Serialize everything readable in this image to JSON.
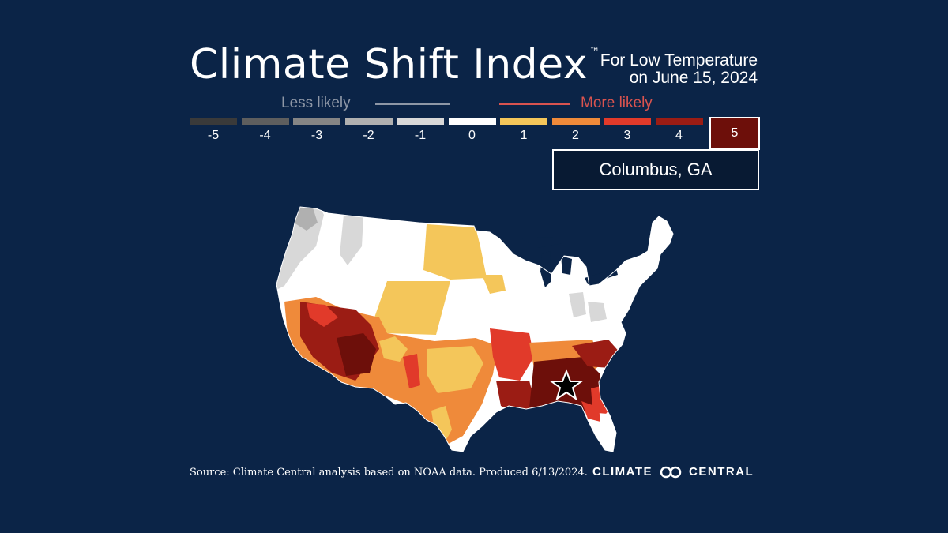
{
  "title": "Climate Shift Index",
  "trademark": "™",
  "subtitle_line1": "For Low Temperature",
  "subtitle_line2": "on June 15, 2024",
  "legend": {
    "less_label": "Less likely",
    "more_label": "More likely",
    "scale": [
      {
        "value": "-5",
        "color": "#3a3a3a"
      },
      {
        "value": "-4",
        "color": "#5e5e5e"
      },
      {
        "value": "-3",
        "color": "#858585"
      },
      {
        "value": "-2",
        "color": "#b0b0b0"
      },
      {
        "value": "-1",
        "color": "#d8d8d8"
      },
      {
        "value": "0",
        "color": "#ffffff"
      },
      {
        "value": "1",
        "color": "#f4c65a"
      },
      {
        "value": "2",
        "color": "#ef8a3a"
      },
      {
        "value": "3",
        "color": "#e13a2a"
      },
      {
        "value": "4",
        "color": "#9b1c14"
      }
    ],
    "highlight": {
      "value": "5",
      "color": "#6d0f0a"
    }
  },
  "location": "Columbus, GA",
  "map": {
    "region": "Contiguous United States",
    "marker_icon": "star-icon"
  },
  "source": "Source: Climate Central analysis based on NOAA data. Produced 6/13/2024.",
  "logo": {
    "left": "CLIMATE",
    "right": "CENTRAL"
  }
}
